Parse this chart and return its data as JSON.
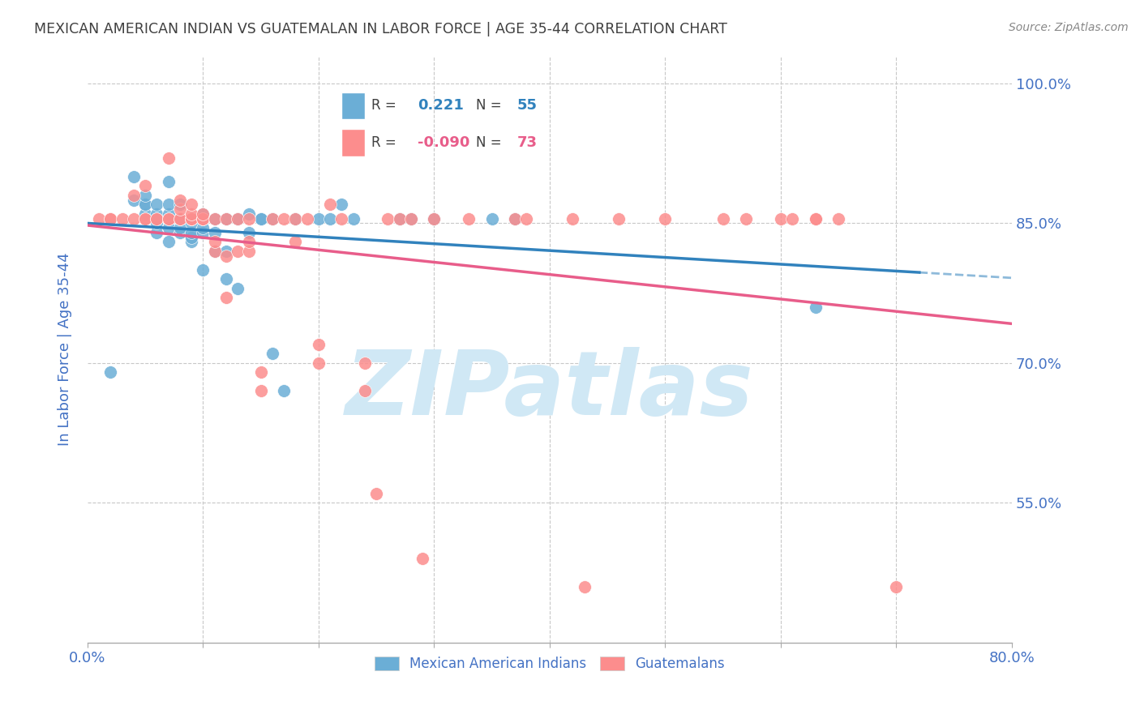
{
  "title": "MEXICAN AMERICAN INDIAN VS GUATEMALAN IN LABOR FORCE | AGE 35-44 CORRELATION CHART",
  "source": "Source: ZipAtlas.com",
  "ylabel": "In Labor Force | Age 35-44",
  "xmin": 0.0,
  "xmax": 0.8,
  "ymin": 0.4,
  "ymax": 1.03,
  "yticks": [
    0.55,
    0.7,
    0.85,
    1.0
  ],
  "ytick_labels": [
    "55.0%",
    "70.0%",
    "85.0%",
    "100.0%"
  ],
  "blue_color": "#6baed6",
  "pink_color": "#fc8d8d",
  "blue_line_color": "#3182bd",
  "pink_line_color": "#e85d8a",
  "legend_blue_r": "0.221",
  "legend_blue_n": "55",
  "legend_pink_r": "-0.090",
  "legend_pink_n": "73",
  "blue_scatter_x": [
    0.02,
    0.04,
    0.04,
    0.05,
    0.05,
    0.05,
    0.05,
    0.06,
    0.06,
    0.06,
    0.06,
    0.06,
    0.07,
    0.07,
    0.07,
    0.07,
    0.07,
    0.08,
    0.08,
    0.08,
    0.08,
    0.09,
    0.09,
    0.09,
    0.09,
    0.1,
    0.1,
    0.1,
    0.1,
    0.11,
    0.11,
    0.11,
    0.12,
    0.12,
    0.12,
    0.13,
    0.13,
    0.14,
    0.14,
    0.15,
    0.15,
    0.16,
    0.16,
    0.17,
    0.18,
    0.2,
    0.21,
    0.22,
    0.23,
    0.27,
    0.28,
    0.3,
    0.35,
    0.37,
    0.63
  ],
  "blue_scatter_y": [
    0.69,
    0.875,
    0.9,
    0.86,
    0.87,
    0.87,
    0.88,
    0.84,
    0.85,
    0.855,
    0.86,
    0.87,
    0.83,
    0.845,
    0.86,
    0.87,
    0.895,
    0.84,
    0.845,
    0.855,
    0.87,
    0.83,
    0.835,
    0.84,
    0.85,
    0.8,
    0.84,
    0.845,
    0.86,
    0.82,
    0.84,
    0.855,
    0.79,
    0.82,
    0.855,
    0.78,
    0.855,
    0.84,
    0.86,
    0.855,
    0.855,
    0.855,
    0.71,
    0.67,
    0.855,
    0.855,
    0.855,
    0.87,
    0.855,
    0.855,
    0.855,
    0.855,
    0.855,
    0.855,
    0.76
  ],
  "pink_scatter_x": [
    0.01,
    0.02,
    0.02,
    0.03,
    0.04,
    0.04,
    0.05,
    0.05,
    0.05,
    0.06,
    0.06,
    0.07,
    0.07,
    0.07,
    0.08,
    0.08,
    0.08,
    0.08,
    0.09,
    0.09,
    0.09,
    0.09,
    0.09,
    0.09,
    0.1,
    0.1,
    0.1,
    0.1,
    0.11,
    0.11,
    0.11,
    0.12,
    0.12,
    0.12,
    0.13,
    0.13,
    0.14,
    0.14,
    0.14,
    0.15,
    0.15,
    0.16,
    0.17,
    0.18,
    0.18,
    0.19,
    0.2,
    0.2,
    0.21,
    0.22,
    0.24,
    0.24,
    0.25,
    0.26,
    0.27,
    0.28,
    0.29,
    0.3,
    0.33,
    0.37,
    0.38,
    0.42,
    0.43,
    0.46,
    0.5,
    0.55,
    0.57,
    0.6,
    0.61,
    0.63,
    0.63,
    0.65,
    0.7
  ],
  "pink_scatter_y": [
    0.855,
    0.855,
    0.855,
    0.855,
    0.88,
    0.855,
    0.855,
    0.855,
    0.89,
    0.855,
    0.855,
    0.855,
    0.855,
    0.92,
    0.855,
    0.855,
    0.865,
    0.875,
    0.855,
    0.855,
    0.855,
    0.855,
    0.86,
    0.87,
    0.855,
    0.855,
    0.855,
    0.86,
    0.82,
    0.83,
    0.855,
    0.77,
    0.815,
    0.855,
    0.82,
    0.855,
    0.82,
    0.83,
    0.855,
    0.67,
    0.69,
    0.855,
    0.855,
    0.83,
    0.855,
    0.855,
    0.7,
    0.72,
    0.87,
    0.855,
    0.67,
    0.7,
    0.56,
    0.855,
    0.855,
    0.855,
    0.49,
    0.855,
    0.855,
    0.855,
    0.855,
    0.855,
    0.46,
    0.855,
    0.855,
    0.855,
    0.855,
    0.855,
    0.855,
    0.855,
    0.855,
    0.855,
    0.46
  ],
  "watermark": "ZIPatlas",
  "watermark_color": "#d0e8f5",
  "axis_label_color": "#4472c4",
  "title_color": "#404040",
  "tick_color": "#4472c4",
  "grid_color": "#c8c8c8",
  "background_color": "#ffffff"
}
